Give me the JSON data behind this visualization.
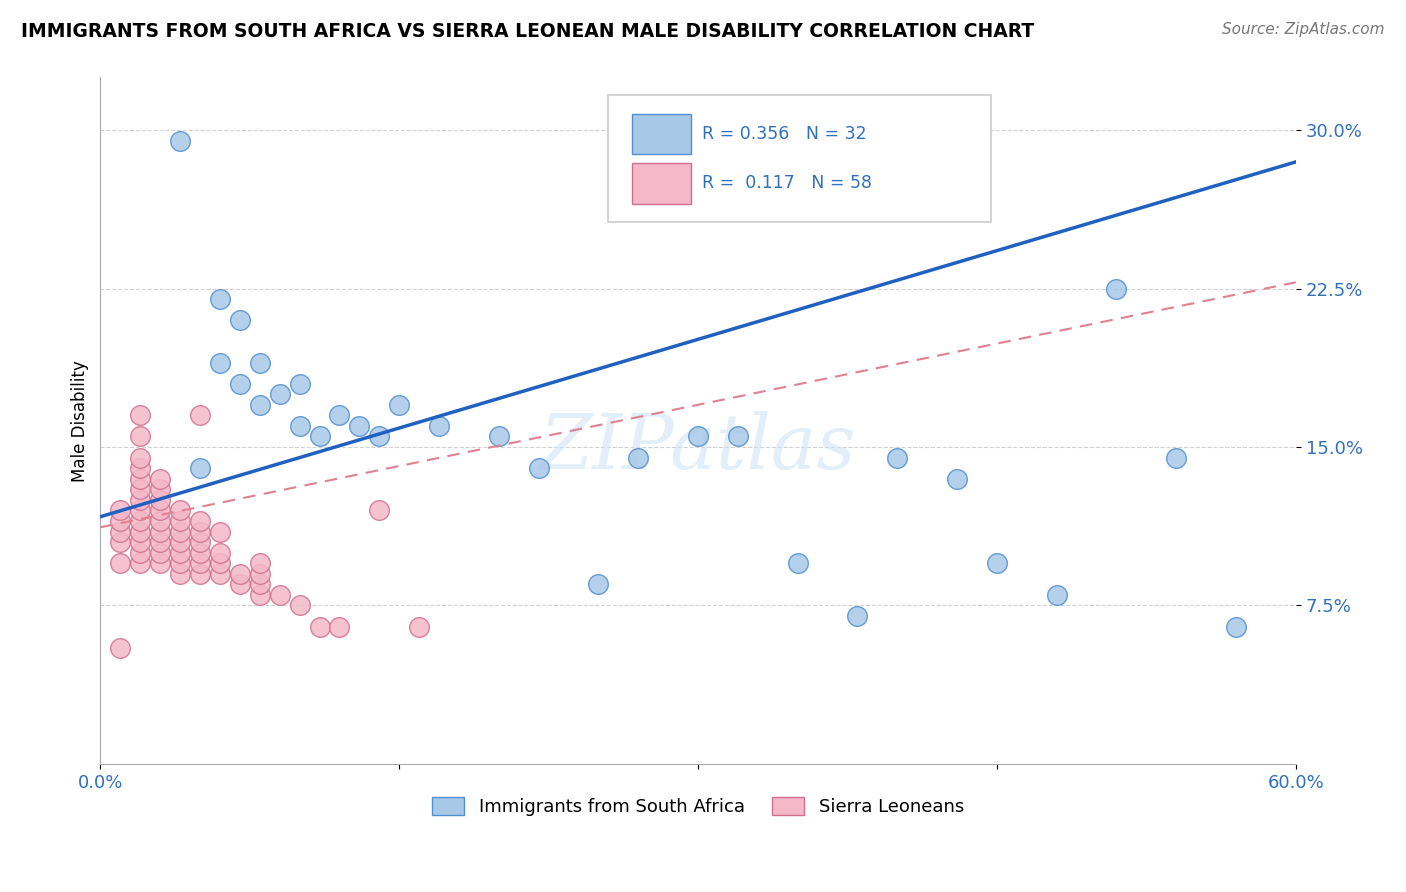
{
  "title": "IMMIGRANTS FROM SOUTH AFRICA VS SIERRA LEONEAN MALE DISABILITY CORRELATION CHART",
  "source": "Source: ZipAtlas.com",
  "ylabel": "Male Disability",
  "watermark": "ZIPatlas",
  "blue_R": "0.356",
  "blue_N": "32",
  "pink_R": "0.117",
  "pink_N": "58",
  "blue_color": "#a8c8e8",
  "pink_color": "#f4b8c8",
  "blue_edge_color": "#5090d0",
  "pink_edge_color": "#d07090",
  "blue_line_color": "#2060c0",
  "pink_line_color": "#e08090",
  "ytick_labels": [
    "7.5%",
    "15.0%",
    "22.5%",
    "30.0%"
  ],
  "ytick_values": [
    0.075,
    0.15,
    0.225,
    0.3
  ],
  "xtick_values": [
    0.0,
    0.15,
    0.3,
    0.45,
    0.6
  ],
  "blue_x": [
    0.04,
    0.05,
    0.06,
    0.06,
    0.07,
    0.07,
    0.08,
    0.08,
    0.09,
    0.1,
    0.1,
    0.11,
    0.12,
    0.13,
    0.14,
    0.15,
    0.17,
    0.2,
    0.22,
    0.25,
    0.27,
    0.3,
    0.32,
    0.35,
    0.38,
    0.4,
    0.43,
    0.45,
    0.48,
    0.51,
    0.54,
    0.57
  ],
  "blue_y": [
    0.295,
    0.14,
    0.22,
    0.19,
    0.21,
    0.18,
    0.19,
    0.17,
    0.175,
    0.18,
    0.16,
    0.155,
    0.165,
    0.16,
    0.155,
    0.17,
    0.16,
    0.155,
    0.14,
    0.085,
    0.145,
    0.155,
    0.155,
    0.095,
    0.07,
    0.145,
    0.135,
    0.095,
    0.08,
    0.225,
    0.145,
    0.065
  ],
  "pink_x": [
    0.01,
    0.01,
    0.01,
    0.01,
    0.01,
    0.02,
    0.02,
    0.02,
    0.02,
    0.02,
    0.02,
    0.02,
    0.02,
    0.02,
    0.02,
    0.02,
    0.02,
    0.02,
    0.03,
    0.03,
    0.03,
    0.03,
    0.03,
    0.03,
    0.03,
    0.03,
    0.03,
    0.04,
    0.04,
    0.04,
    0.04,
    0.04,
    0.04,
    0.04,
    0.05,
    0.05,
    0.05,
    0.05,
    0.05,
    0.05,
    0.05,
    0.06,
    0.06,
    0.06,
    0.06,
    0.07,
    0.07,
    0.08,
    0.08,
    0.08,
    0.08,
    0.09,
    0.1,
    0.11,
    0.12,
    0.14,
    0.16,
    0.01
  ],
  "pink_y": [
    0.095,
    0.105,
    0.11,
    0.115,
    0.12,
    0.095,
    0.1,
    0.105,
    0.11,
    0.115,
    0.12,
    0.125,
    0.13,
    0.135,
    0.14,
    0.145,
    0.155,
    0.165,
    0.095,
    0.1,
    0.105,
    0.11,
    0.115,
    0.12,
    0.125,
    0.13,
    0.135,
    0.09,
    0.095,
    0.1,
    0.105,
    0.11,
    0.115,
    0.12,
    0.09,
    0.095,
    0.1,
    0.105,
    0.11,
    0.115,
    0.165,
    0.09,
    0.095,
    0.1,
    0.11,
    0.085,
    0.09,
    0.08,
    0.085,
    0.09,
    0.095,
    0.08,
    0.075,
    0.065,
    0.065,
    0.12,
    0.065,
    0.055
  ],
  "legend_label_blue": "Immigrants from South Africa",
  "legend_label_pink": "Sierra Leoneans",
  "xmin": 0.0,
  "xmax": 0.6,
  "ymin": 0.0,
  "ymax": 0.325,
  "blue_trendline_x0": 0.0,
  "blue_trendline_y0": 0.117,
  "blue_trendline_x1": 0.6,
  "blue_trendline_y1": 0.285,
  "pink_trendline_x0": 0.0,
  "pink_trendline_y0": 0.112,
  "pink_trendline_x1": 0.6,
  "pink_trendline_y1": 0.228
}
